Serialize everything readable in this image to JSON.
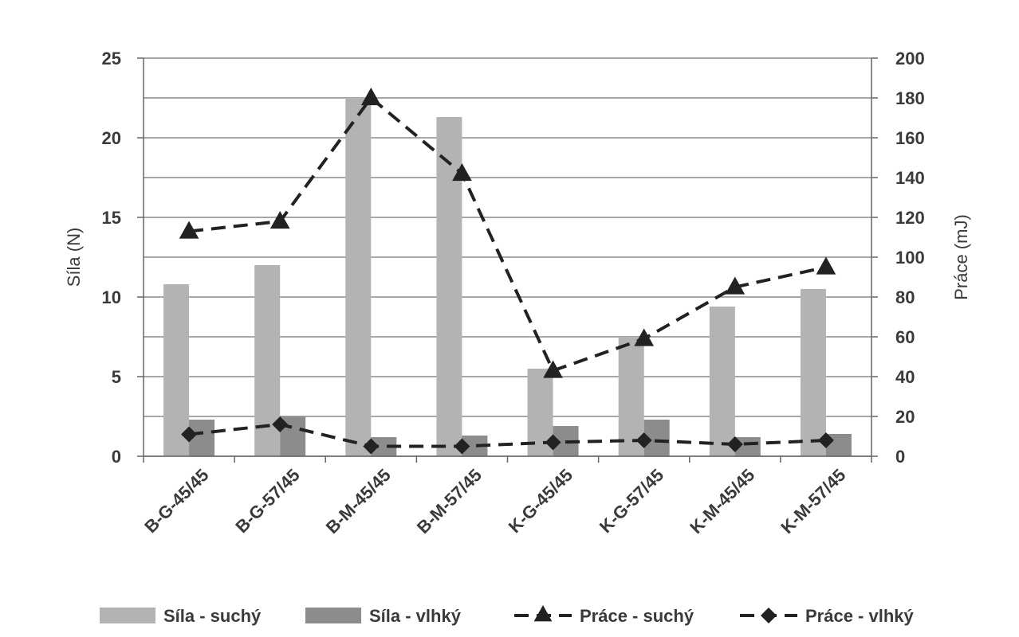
{
  "chart_data": {
    "type": "bar",
    "categories": [
      "B-G-45/45",
      "B-G-57/45",
      "B-M-45/45",
      "B-M-57/45",
      "K-G-45/45",
      "K-G-57/45",
      "K-M-45/45",
      "K-M-57/45"
    ],
    "ylabel": "Síla (N)",
    "y2label": "Práce (mJ)",
    "ylim": [
      0,
      25
    ],
    "y2lim": [
      0,
      200
    ],
    "yticks": [
      "0",
      "5",
      "10",
      "15",
      "20",
      "25"
    ],
    "y2ticks": [
      "0",
      "20",
      "40",
      "60",
      "80",
      "100",
      "120",
      "140",
      "160",
      "180",
      "200"
    ],
    "grid": true,
    "legend_position": "bottom",
    "series": [
      {
        "name": "Síla - suchý",
        "kind": "bar",
        "axis": "left",
        "color": "#b3b3b3",
        "values": [
          10.8,
          12.0,
          22.5,
          21.3,
          5.5,
          7.5,
          9.4,
          10.5
        ]
      },
      {
        "name": "Síla - vlhký",
        "kind": "bar",
        "axis": "left",
        "color": "#8c8c8c",
        "values": [
          2.3,
          2.5,
          1.2,
          1.3,
          1.9,
          2.3,
          1.2,
          1.4
        ]
      },
      {
        "name": "Práce - suchý",
        "kind": "line",
        "axis": "right",
        "color": "#222222",
        "marker": "triangle",
        "values": [
          113,
          118,
          180,
          142,
          43,
          59,
          85,
          95
        ]
      },
      {
        "name": "Práce - vlhký",
        "kind": "line",
        "axis": "right",
        "color": "#222222",
        "marker": "diamond",
        "values": [
          11,
          16,
          5,
          5,
          7,
          8,
          6,
          8
        ]
      }
    ]
  }
}
